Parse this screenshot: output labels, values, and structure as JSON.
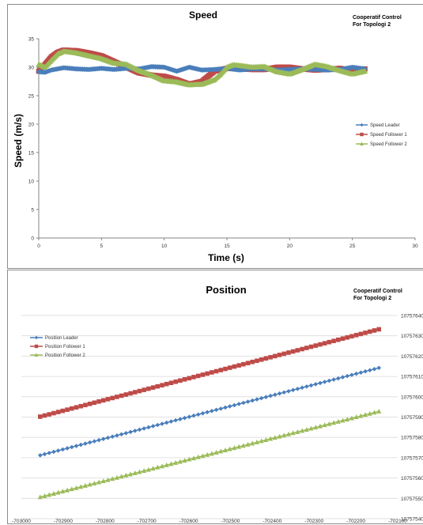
{
  "chart_data": [
    {
      "type": "line",
      "title": "Speed",
      "subtitle": "Cooperatif Control\nFor Topologi 2",
      "xlabel": "Time (s)",
      "ylabel": "Speed (m/s)",
      "xlim": [
        0,
        30
      ],
      "ylim": [
        0,
        35
      ],
      "xticks": [
        0,
        5,
        10,
        15,
        20,
        25,
        30
      ],
      "yticks": [
        0,
        5,
        10,
        15,
        20,
        25,
        30,
        35
      ],
      "grid": false,
      "legend_position": "right",
      "series": [
        {
          "name": "Speed Leader",
          "color": "#4a7ebb",
          "marker": "diamond",
          "x": [
            0,
            0.5,
            1,
            2,
            3,
            4,
            5,
            6,
            7,
            8,
            9,
            10,
            11,
            12,
            13,
            14,
            15,
            16,
            17,
            18,
            19,
            20,
            21,
            22,
            23,
            24,
            25,
            26
          ],
          "y": [
            29.2,
            29.1,
            29.5,
            29.9,
            29.7,
            29.6,
            29.8,
            29.6,
            29.8,
            29.7,
            30.1,
            30.0,
            29.3,
            30.0,
            29.5,
            29.6,
            29.8,
            29.5,
            29.7,
            29.7,
            29.5,
            29.6,
            29.7,
            29.6,
            29.5,
            29.6,
            30.0,
            29.7
          ]
        },
        {
          "name": "Speed Follower 1",
          "color": "#be4b48",
          "marker": "square",
          "x": [
            0,
            0.5,
            1,
            1.5,
            2,
            3,
            4,
            5,
            6,
            7,
            8,
            9,
            10,
            11,
            12,
            13,
            14,
            15,
            16,
            17,
            18,
            19,
            20,
            21,
            22,
            23,
            24,
            25,
            26
          ],
          "y": [
            29.3,
            30.5,
            31.8,
            32.6,
            33.0,
            32.9,
            32.5,
            32.0,
            31.0,
            30.0,
            29.0,
            28.6,
            28.4,
            27.8,
            27.0,
            27.5,
            29.3,
            29.8,
            29.7,
            29.6,
            29.6,
            30.0,
            30.0,
            29.7,
            29.5,
            29.6,
            29.8,
            29.3,
            29.7
          ]
        },
        {
          "name": "Speed Follower 2",
          "color": "#9bbb59",
          "marker": "triangle",
          "x": [
            0,
            0.5,
            1,
            1.5,
            2,
            3,
            4,
            5,
            6,
            7,
            8,
            9,
            10,
            11,
            12,
            13,
            14,
            14.5,
            15,
            15.5,
            16,
            17,
            18,
            19,
            20,
            21,
            22,
            23,
            24,
            25,
            26
          ],
          "y": [
            30.5,
            30.0,
            31.2,
            32.3,
            32.8,
            32.5,
            32.0,
            31.5,
            30.7,
            30.5,
            29.4,
            28.6,
            27.6,
            27.4,
            26.9,
            27.0,
            27.8,
            28.8,
            30.0,
            30.4,
            30.3,
            30.0,
            30.1,
            29.2,
            28.8,
            29.6,
            30.5,
            30.1,
            29.4,
            28.8,
            29.3
          ]
        }
      ]
    },
    {
      "type": "line",
      "title": "Position",
      "subtitle": "Cooperatif Control\nFor Topologi 2",
      "xlim": [
        -703000,
        -702100
      ],
      "ylim": [
        10757540,
        10757640
      ],
      "xticks": [
        -703000,
        -702900,
        -702800,
        -702700,
        -702600,
        -702500,
        -702400,
        -702300,
        -702200,
        -702100
      ],
      "yticks": [
        10757540,
        10757550,
        10757560,
        10757570,
        10757580,
        10757590,
        10757600,
        10757610,
        10757620,
        10757630,
        10757640
      ],
      "grid": true,
      "legend_position": "top-left",
      "series": [
        {
          "name": "Position Leader",
          "color": "#4a7ebb",
          "marker": "diamond",
          "x_start": -702955,
          "x_end": -702145,
          "y_start": 10757571.2,
          "y_end": 10757614.2
        },
        {
          "name": "Position Follower 1",
          "color": "#be4b48",
          "marker": "square",
          "x_start": -702955,
          "x_end": -702145,
          "y_start": 10757590.2,
          "y_end": 10757633.2
        },
        {
          "name": "Position Follower 2",
          "color": "#9bbb59",
          "marker": "triangle",
          "x_start": -702955,
          "x_end": -702145,
          "y_start": 10757550.6,
          "y_end": 10757592.8
        }
      ]
    }
  ]
}
